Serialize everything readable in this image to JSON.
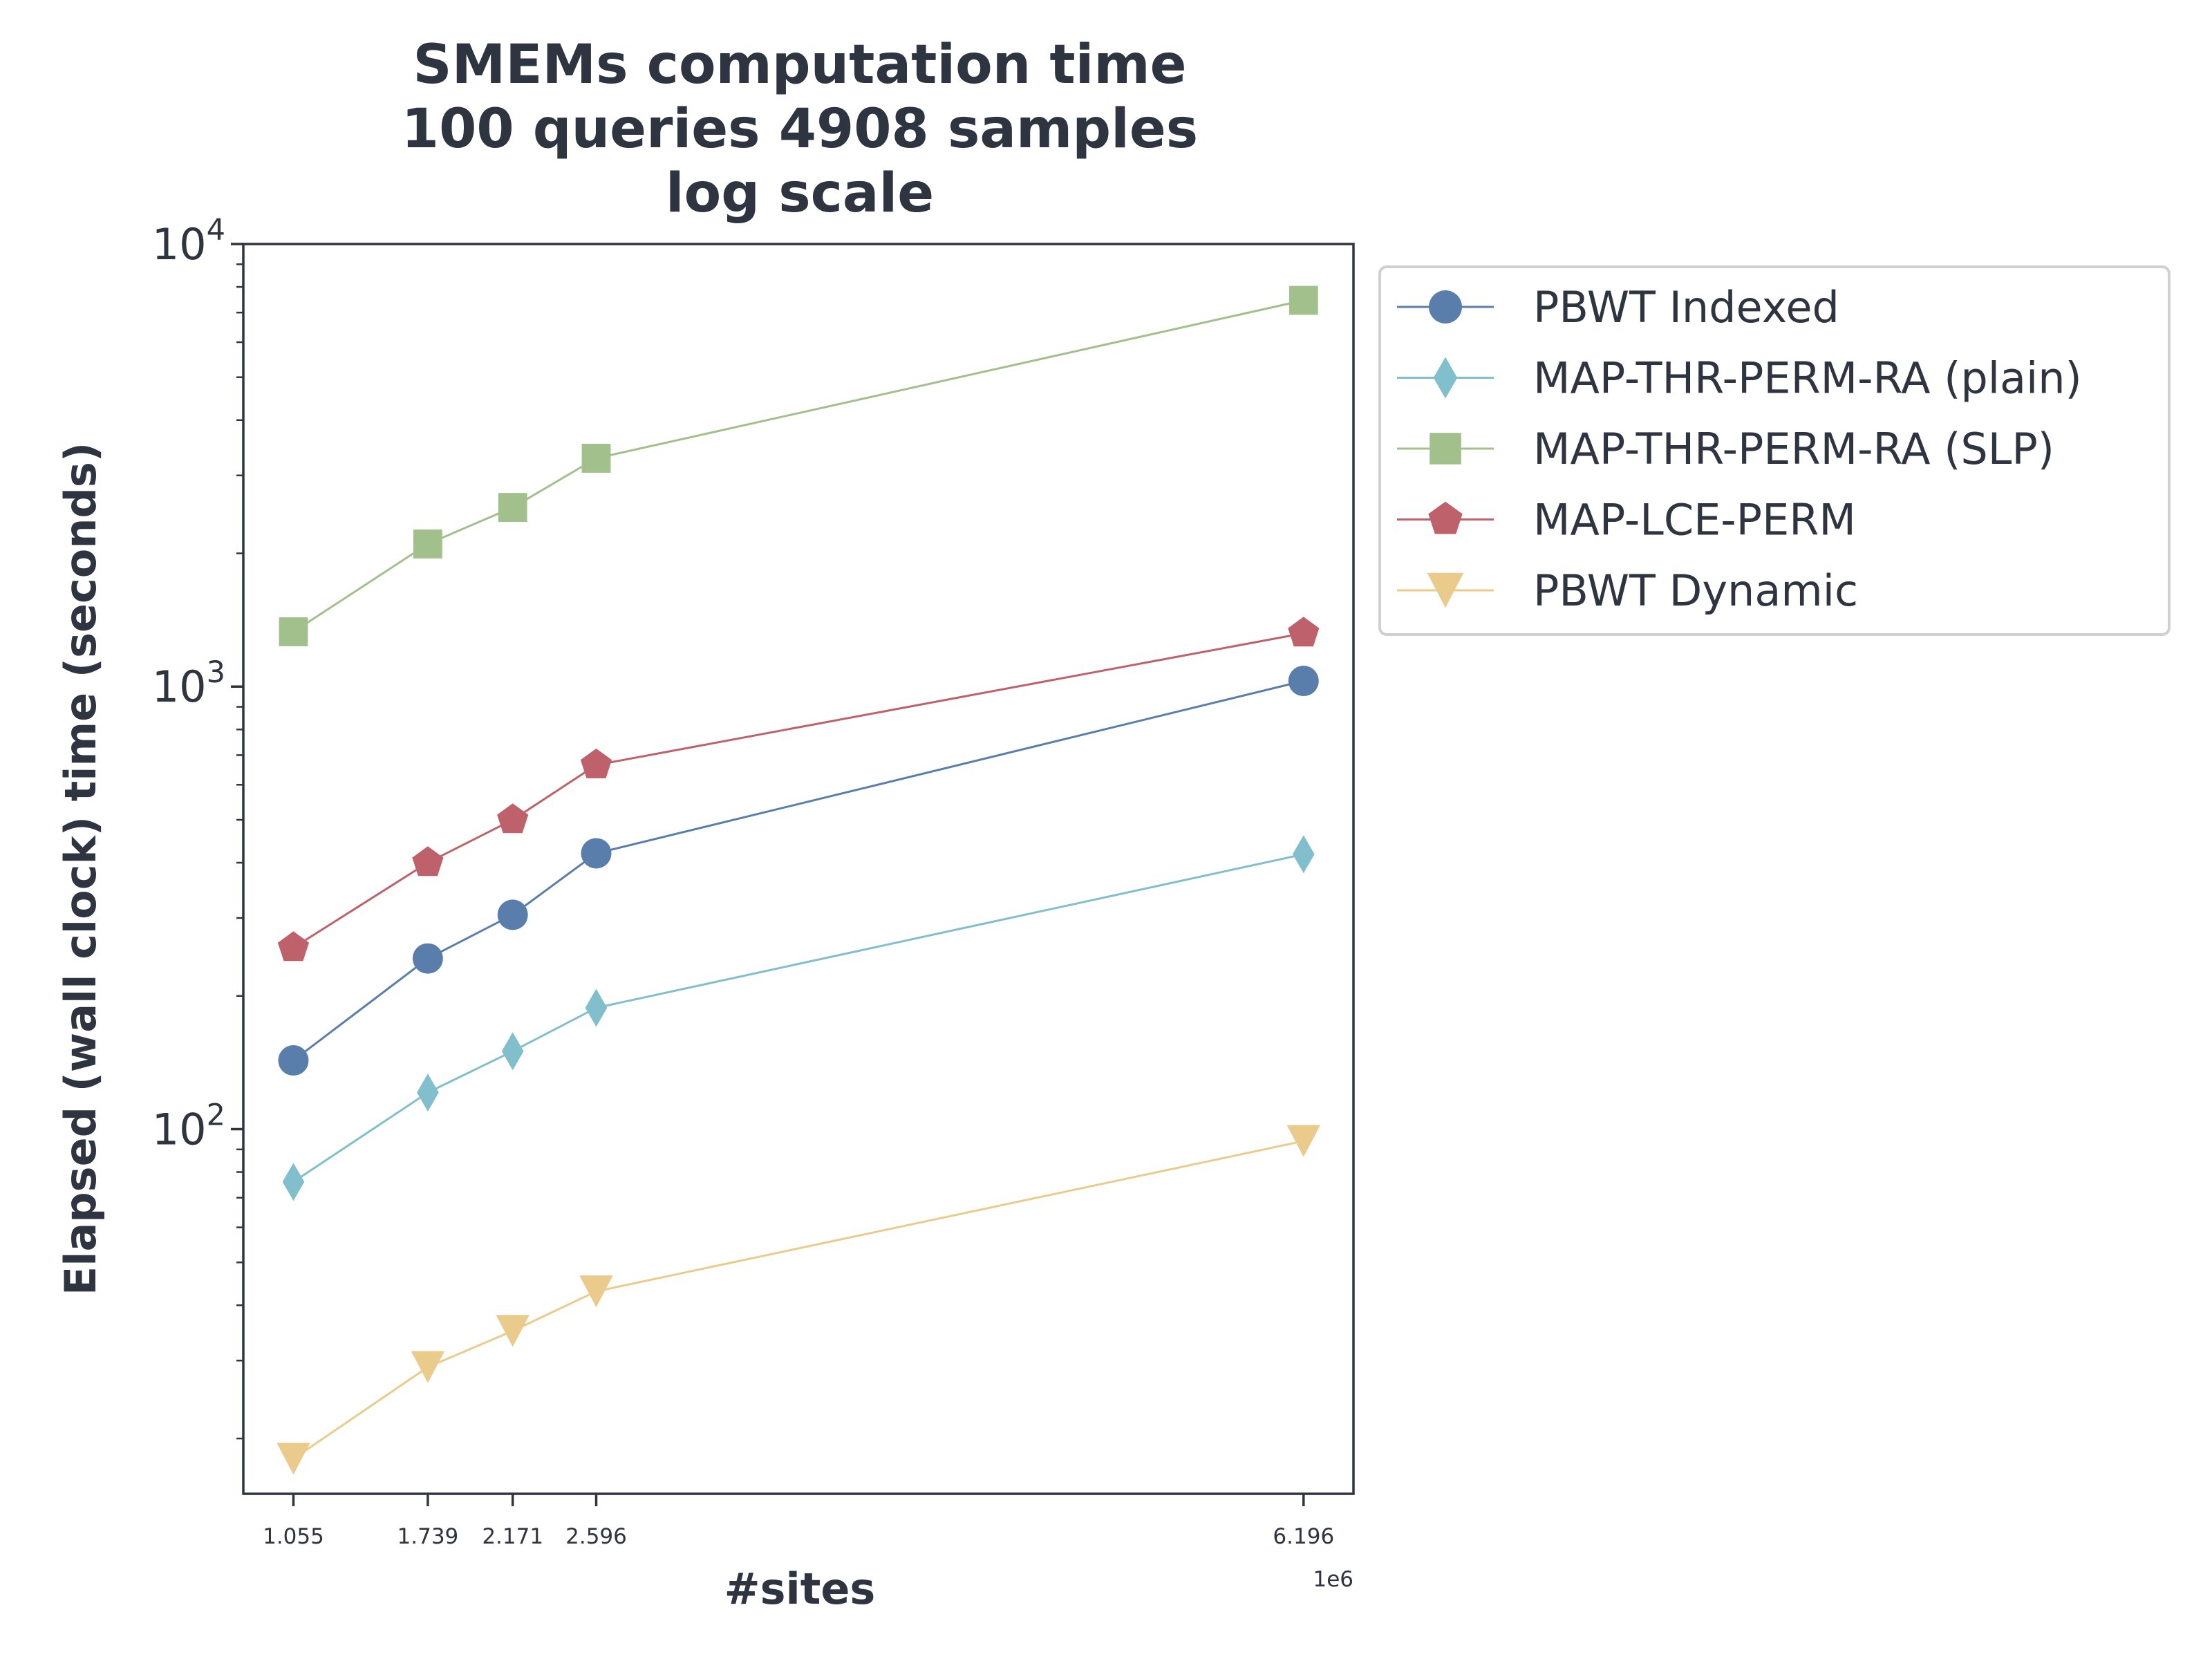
{
  "chart_data": {
    "type": "line",
    "title_lines": [
      "SMEMs computation time",
      "100 queries 4908 samples",
      "log scale"
    ],
    "xlabel": "#sites",
    "ylabel": "Elapsed (wall clock) time (seconds)",
    "x": [
      1.055,
      1.739,
      2.171,
      2.596,
      6.196
    ],
    "x_tick_labels": [
      "1.055",
      "1.739",
      "2.171",
      "2.596",
      "6.196"
    ],
    "x_offset_label": "1e6",
    "xlim": [
      0.8,
      6.45
    ],
    "y_scale": "log",
    "ylim": [
      15,
      10000
    ],
    "y_ticks": [
      {
        "base": "10",
        "exp": "2",
        "value": 100
      },
      {
        "base": "10",
        "exp": "3",
        "value": 1000
      },
      {
        "base": "10",
        "exp": "4",
        "value": 10000
      }
    ],
    "legend_position": "outside-right",
    "series": [
      {
        "name": "PBWT Indexed",
        "marker": "circle",
        "color": "#5a7eab",
        "values": [
          143,
          243,
          305,
          420,
          1030
        ]
      },
      {
        "name": "MAP-THR-PERM-RA (plain)",
        "marker": "diamond",
        "color": "#82bfcc",
        "values": [
          76,
          121,
          150,
          188,
          418
        ]
      },
      {
        "name": "MAP-THR-PERM-RA (SLP)",
        "marker": "square",
        "color": "#a1c08b",
        "values": [
          1330,
          2100,
          2540,
          3280,
          7460
        ]
      },
      {
        "name": "MAP-LCE-PERM",
        "marker": "pentagon",
        "color": "#bf616a",
        "values": [
          257,
          400,
          500,
          665,
          1320
        ]
      },
      {
        "name": "PBWT Dynamic",
        "marker": "triangle-down",
        "color": "#ebcb8b",
        "values": [
          18,
          29,
          35,
          43,
          94
        ]
      }
    ]
  }
}
